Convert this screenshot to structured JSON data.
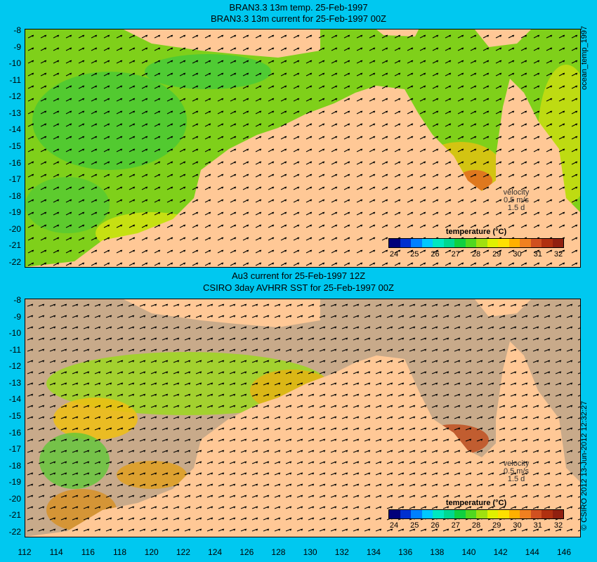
{
  "top_panel": {
    "title_line1": "BRAN3.3 13m temp. 25-Feb-1997",
    "title_line2": "BRAN3.3 13m current for 25-Feb-1997 00Z",
    "side_label": "ocean_temp_1997",
    "velocity_label": "velocity",
    "velocity_scale": "0.5 m/s",
    "velocity_time": "1.5 d"
  },
  "bottom_panel": {
    "title_line1": "Au3 current for 25-Feb-1997 12Z",
    "title_line2": "CSIRO 3day AVHRR SST for 25-Feb-1997 00Z",
    "side_label": "© CSIRO 2012  13-Jun-2012 12:32:27",
    "velocity_label": "velocity",
    "velocity_scale": "0.5 m/s",
    "velocity_time": "1.5 d"
  },
  "colorbar": {
    "title": "temperature (°C)",
    "ticks": [
      "24",
      "25",
      "26",
      "27",
      "28",
      "29",
      "30",
      "31",
      "32"
    ],
    "colors": [
      "#00007a",
      "#0030d0",
      "#0080ff",
      "#00c8ff",
      "#00e8c0",
      "#00d890",
      "#10d040",
      "#50d820",
      "#a0e010",
      "#e0f000",
      "#ffe000",
      "#ffb000",
      "#f08020",
      "#d05020",
      "#b03010",
      "#902010"
    ]
  },
  "y_axis_ticks": [
    "-8",
    "-9",
    "-10",
    "-11",
    "-12",
    "-13",
    "-14",
    "-15",
    "-16",
    "-17",
    "-18",
    "-19",
    "-20",
    "-21",
    "-22"
  ],
  "x_axis_ticks": [
    "112",
    "114",
    "116",
    "118",
    "120",
    "122",
    "124",
    "126",
    "128",
    "130",
    "132",
    "134",
    "136",
    "138",
    "140",
    "142",
    "144",
    "146"
  ],
  "colors": {
    "background": "#00c8f0",
    "land": "#ffc896",
    "sea_warm": "#90d818",
    "sea_no_data": "#c8aa8a"
  }
}
